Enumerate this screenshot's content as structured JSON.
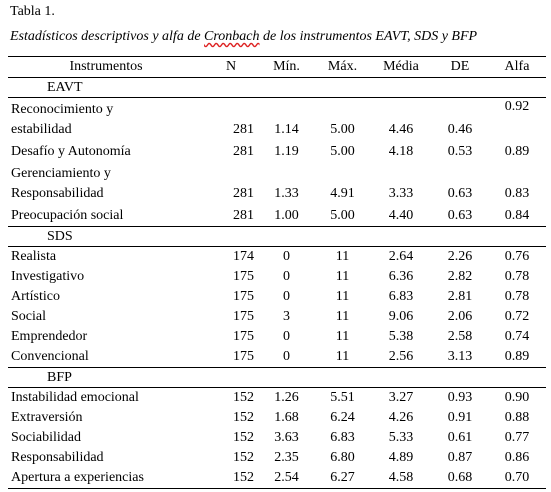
{
  "table_label": "Tabla 1.",
  "caption": {
    "before": "Estadísticos descriptivos y alfa de ",
    "misspelled": "Cronbach",
    "after": " de los instrumentos EAVT, SDS y BFP"
  },
  "headers": {
    "instrumentos": "Instrumentos",
    "n": "N",
    "min": "Mín.",
    "max": "Máx.",
    "media": "Média",
    "de": "DE",
    "alfa": "Alfa"
  },
  "groups": [
    {
      "name": "EAVT",
      "rows": [
        {
          "line1": "Reconocimiento y",
          "line2": "estabilidad",
          "n": "281",
          "min": "1.14",
          "max": "5.00",
          "media": "4.46",
          "de": "0.46",
          "alfa": "0.92",
          "alfa_top": true
        },
        {
          "line1": "Desafío y Autonomía",
          "n": "281",
          "min": "1.19",
          "max": "5.00",
          "media": "4.18",
          "de": "0.53",
          "alfa": "0.89"
        },
        {
          "line1": "Gerenciamiento y",
          "line2": "Responsabilidad",
          "n": "281",
          "min": "1.33",
          "max": "4.91",
          "media": "3.33",
          "de": "0.63",
          "alfa": "0.83"
        },
        {
          "line1": "Preocupación social",
          "n": "281",
          "min": "1.00",
          "max": "5.00",
          "media": "4.40",
          "de": "0.63",
          "alfa": "0.84"
        }
      ]
    },
    {
      "name": "SDS",
      "rows": [
        {
          "line1": "Realista",
          "n": "174",
          "min": "0",
          "max": "11",
          "media": "2.64",
          "de": "2.26",
          "alfa": "0.76"
        },
        {
          "line1": "Investigativo",
          "n": "175",
          "min": "0",
          "max": "11",
          "media": "6.36",
          "de": "2.82",
          "alfa": "0.78"
        },
        {
          "line1": "Artístico",
          "n": "175",
          "min": "0",
          "max": "11",
          "media": "6.83",
          "de": "2.81",
          "alfa": "0.78"
        },
        {
          "line1": "Social",
          "n": "175",
          "min": "3",
          "max": "11",
          "media": "9.06",
          "de": "2.06",
          "alfa": "0.72"
        },
        {
          "line1": "Emprendedor",
          "n": "175",
          "min": "0",
          "max": "11",
          "media": "5.38",
          "de": "2.58",
          "alfa": "0.74"
        },
        {
          "line1": "Convencional",
          "n": "175",
          "min": "0",
          "max": "11",
          "media": "2.56",
          "de": "3.13",
          "alfa": "0.89"
        }
      ]
    },
    {
      "name": "BFP",
      "rows": [
        {
          "line1": "Instabilidad emocional",
          "n": "152",
          "min": "1.26",
          "max": "5.51",
          "media": "3.27",
          "de": "0.93",
          "alfa": "0.90"
        },
        {
          "line1": "Extraversión",
          "n": "152",
          "min": "1.68",
          "max": "6.24",
          "media": "4.26",
          "de": "0.91",
          "alfa": "0.88"
        },
        {
          "line1": "Sociabilidad",
          "n": "152",
          "min": "3.63",
          "max": "6.83",
          "media": "5.33",
          "de": "0.61",
          "alfa": "0.77"
        },
        {
          "line1": "Responsabilidad",
          "n": "152",
          "min": "2.35",
          "max": "6.80",
          "media": "4.89",
          "de": "0.87",
          "alfa": "0.86"
        },
        {
          "line1": "Apertura a experiencias",
          "n": "152",
          "min": "2.54",
          "max": "6.27",
          "media": "4.58",
          "de": "0.68",
          "alfa": "0.70"
        }
      ]
    }
  ]
}
